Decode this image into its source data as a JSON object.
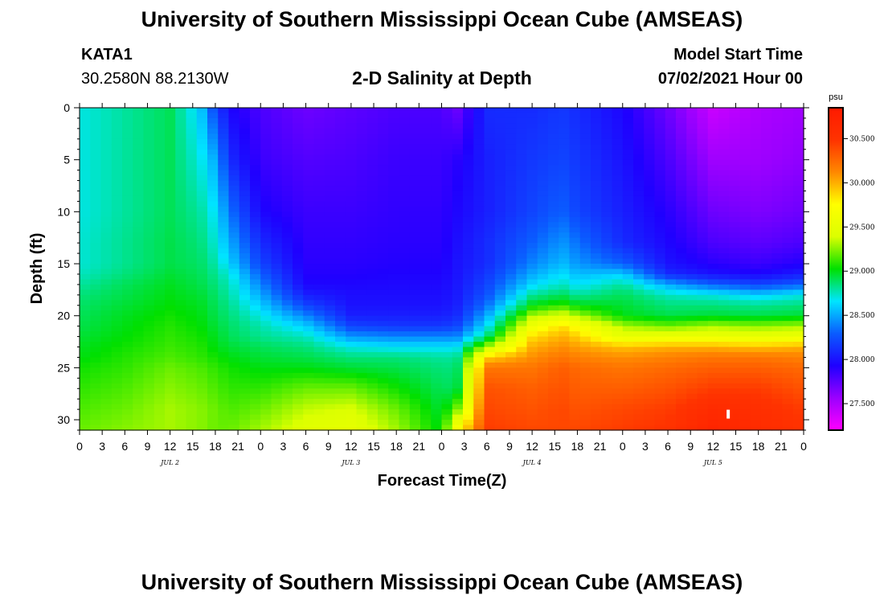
{
  "header": {
    "title": "University of Southern Mississippi Ocean Cube (AMSEAS)",
    "station": "KATA1",
    "coords": "30.2580N  88.2130W",
    "chart_title": "2-D Salinity at Depth",
    "model_label": "Model Start Time",
    "model_time": "07/02/2021 Hour 00"
  },
  "footer": {
    "title": "University of Southern Mississippi Ocean Cube (AMSEAS)"
  },
  "colors": {
    "background": "#ffffff",
    "axis": "#000000",
    "colormap": [
      "#ff00ff",
      "#9b00ff",
      "#1f00ff",
      "#0a5cff",
      "#00e5ff",
      "#00e000",
      "#dcff00",
      "#ffff00",
      "#ff8800",
      "#ff3300",
      "#ff1a00"
    ]
  },
  "chart_data": {
    "type": "heatmap",
    "title": "2-D Salinity at Depth",
    "xlabel": "Forecast Time(Z)",
    "ylabel": "Depth (ft)",
    "x_hours_range": [
      0,
      96
    ],
    "y_range": [
      0,
      31
    ],
    "y_ticks": [
      0,
      5,
      10,
      15,
      20,
      25,
      30
    ],
    "x_tick_labels": [
      "0",
      "3",
      "6",
      "9",
      "12",
      "15",
      "18",
      "21",
      "0",
      "3",
      "6",
      "9",
      "12",
      "15",
      "18",
      "21",
      "0",
      "3",
      "6",
      "9",
      "12",
      "15",
      "18",
      "21",
      "0",
      "3",
      "6",
      "9",
      "12",
      "15",
      "18",
      "21",
      "0"
    ],
    "day_labels": [
      {
        "label": "JUL 2",
        "hour": 12
      },
      {
        "label": "JUL 3",
        "hour": 36
      },
      {
        "label": "JUL 4",
        "hour": 60
      },
      {
        "label": "JUL 5",
        "hour": 84
      }
    ],
    "colorbar": {
      "unit": "psu",
      "min": 27.2,
      "max": 30.85,
      "ticks": [
        "27.500",
        "28.000",
        "28.500",
        "29.000",
        "29.500",
        "30.000",
        "30.500"
      ]
    },
    "columns_hours": [
      0,
      6,
      12,
      16,
      18,
      20,
      24,
      30,
      36,
      42,
      48,
      50,
      54,
      60,
      64,
      66,
      72,
      78,
      84,
      90,
      96
    ],
    "depth_levels_ft": [
      0,
      5,
      10,
      13,
      15,
      16,
      17,
      18,
      19,
      20,
      21,
      22,
      23,
      24,
      25,
      27,
      29,
      31
    ],
    "salinity_psu": [
      [
        28.7,
        28.7,
        28.7,
        28.72,
        28.72,
        28.75,
        28.8,
        28.85,
        28.88,
        28.9,
        28.92,
        28.95,
        28.98,
        29.0,
        29.05,
        29.1,
        29.15,
        29.2
      ],
      [
        28.8,
        28.8,
        28.8,
        28.82,
        28.82,
        28.85,
        28.9,
        28.92,
        28.95,
        28.98,
        29.0,
        29.02,
        29.05,
        29.08,
        29.1,
        29.15,
        29.2,
        29.25
      ],
      [
        28.9,
        28.9,
        28.9,
        28.92,
        28.92,
        28.95,
        28.98,
        29.0,
        29.02,
        29.05,
        29.08,
        29.1,
        29.12,
        29.15,
        29.2,
        29.25,
        29.3,
        29.3
      ],
      [
        28.6,
        28.7,
        28.8,
        28.85,
        28.88,
        28.9,
        28.92,
        28.95,
        28.98,
        29.0,
        29.02,
        29.05,
        29.08,
        29.1,
        29.15,
        29.2,
        29.25,
        29.25
      ],
      [
        28.2,
        28.5,
        28.65,
        28.72,
        28.78,
        28.82,
        28.85,
        28.88,
        28.9,
        28.92,
        28.95,
        28.98,
        29.0,
        29.05,
        29.1,
        29.15,
        29.2,
        29.2
      ],
      [
        27.95,
        28.1,
        28.35,
        28.5,
        28.6,
        28.7,
        28.75,
        28.78,
        28.82,
        28.85,
        28.88,
        28.9,
        28.95,
        29.0,
        29.05,
        29.1,
        29.15,
        29.2
      ],
      [
        27.8,
        27.85,
        27.95,
        28.1,
        28.2,
        28.3,
        28.4,
        28.5,
        28.6,
        28.7,
        28.78,
        28.82,
        28.9,
        28.95,
        29.0,
        29.1,
        29.2,
        29.3
      ],
      [
        27.7,
        27.78,
        27.85,
        27.88,
        27.9,
        27.92,
        27.95,
        28.05,
        28.2,
        28.4,
        28.6,
        28.75,
        28.85,
        28.92,
        29.0,
        29.2,
        29.35,
        29.45
      ],
      [
        27.75,
        27.8,
        27.85,
        27.88,
        27.9,
        27.92,
        27.95,
        27.98,
        28.0,
        28.05,
        28.2,
        28.45,
        28.7,
        28.85,
        28.95,
        29.2,
        29.4,
        29.5
      ],
      [
        27.8,
        27.85,
        27.88,
        27.9,
        27.92,
        27.94,
        27.96,
        27.98,
        28.0,
        28.05,
        28.15,
        28.4,
        28.65,
        28.85,
        28.92,
        29.05,
        29.2,
        29.3
      ],
      [
        27.8,
        27.85,
        27.88,
        27.9,
        27.92,
        27.94,
        27.96,
        27.98,
        28.0,
        28.05,
        28.15,
        28.4,
        28.65,
        28.8,
        28.85,
        28.9,
        28.95,
        29.0
      ],
      [
        27.7,
        27.9,
        27.95,
        27.98,
        28.0,
        28.0,
        28.02,
        28.03,
        28.05,
        28.1,
        28.2,
        28.4,
        28.65,
        28.8,
        28.85,
        28.9,
        29.2,
        29.7
      ],
      [
        28.1,
        28.05,
        28.05,
        28.1,
        28.1,
        28.15,
        28.2,
        28.25,
        28.35,
        28.5,
        28.65,
        28.85,
        29.3,
        29.9,
        30.2,
        30.35,
        30.4,
        30.45
      ],
      [
        28.1,
        28.15,
        28.2,
        28.3,
        28.4,
        28.5,
        28.62,
        28.8,
        29.0,
        29.3,
        29.6,
        29.85,
        30.0,
        30.1,
        30.2,
        30.3,
        30.35,
        30.4
      ],
      [
        28.15,
        28.2,
        28.3,
        28.45,
        28.55,
        28.65,
        28.75,
        28.9,
        29.1,
        29.45,
        29.85,
        30.0,
        30.1,
        30.2,
        30.3,
        30.35,
        30.4,
        30.4
      ],
      [
        28.1,
        28.15,
        28.2,
        28.35,
        28.45,
        28.55,
        28.65,
        28.8,
        29.0,
        29.3,
        29.7,
        29.9,
        30.05,
        30.15,
        30.25,
        30.3,
        30.35,
        30.4
      ],
      [
        27.95,
        28.0,
        28.05,
        28.1,
        28.3,
        28.6,
        28.8,
        28.9,
        28.95,
        29.0,
        29.3,
        29.5,
        29.95,
        30.1,
        30.2,
        30.3,
        30.4,
        30.45
      ],
      [
        27.7,
        27.8,
        27.9,
        27.95,
        28.0,
        28.1,
        28.5,
        28.75,
        28.85,
        28.92,
        29.2,
        29.55,
        30.0,
        30.15,
        30.25,
        30.35,
        30.45,
        30.5
      ],
      [
        27.4,
        27.55,
        27.7,
        27.8,
        27.9,
        28.0,
        28.3,
        28.7,
        28.85,
        28.95,
        29.3,
        29.55,
        30.0,
        30.2,
        30.3,
        30.45,
        30.6,
        30.7
      ],
      [
        27.5,
        27.55,
        27.65,
        27.75,
        27.85,
        27.95,
        28.2,
        28.6,
        28.82,
        28.92,
        29.25,
        29.5,
        29.95,
        30.2,
        30.3,
        30.45,
        30.55,
        30.6
      ],
      [
        27.55,
        27.6,
        27.7,
        27.8,
        27.92,
        28.05,
        28.3,
        28.7,
        28.85,
        28.95,
        29.3,
        29.55,
        30.0,
        30.15,
        30.25,
        30.35,
        30.45,
        30.5
      ]
    ],
    "marker": {
      "hour": 86,
      "depth_ft": 29.5
    }
  }
}
